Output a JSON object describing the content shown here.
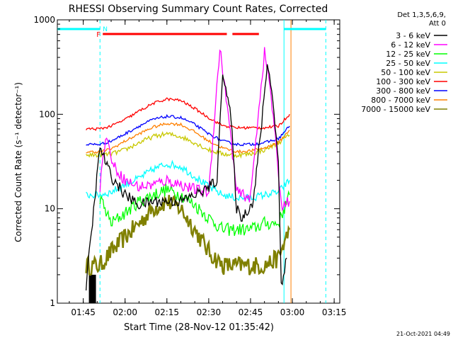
{
  "chart_data": {
    "type": "line",
    "title": "RHESSI Observing Summary Count Rates, Corrected",
    "xlabel": "Start Time (28-Nov-12 01:35:42)",
    "ylabel": "Corrected Count Rate (s⁻¹ detector⁻¹)",
    "yscale": "log",
    "ylim": [
      1,
      1000
    ],
    "xlim": [
      "01:35:42",
      "03:17:00"
    ],
    "x_ticks": [
      "01:45",
      "02:00",
      "02:15",
      "02:30",
      "02:45",
      "03:00",
      "03:15"
    ],
    "y_ticks": [
      "1",
      "10",
      "100",
      "1000"
    ],
    "grid": false,
    "legend_position": "right",
    "legend_header": [
      "Det 1,3,5,6,9,",
      "Att 0"
    ],
    "footer_date": "21-Oct-2021 04:49",
    "flag_labels": {
      "flare": "F",
      "night": "N"
    },
    "attenuator_time": "01:46",
    "series": [
      {
        "name": "3 - 6 keV",
        "color": "#000000",
        "points": [
          [
            "01:46",
            1.5
          ],
          [
            "01:51",
            45
          ],
          [
            "01:55",
            22
          ],
          [
            "02:00",
            14
          ],
          [
            "02:05",
            11
          ],
          [
            "02:10",
            12
          ],
          [
            "02:15",
            12
          ],
          [
            "02:20",
            12
          ],
          [
            "02:25",
            14
          ],
          [
            "02:29",
            16
          ],
          [
            "02:33",
            20
          ],
          [
            "02:35",
            300
          ],
          [
            "02:38",
            90
          ],
          [
            "02:40",
            10
          ],
          [
            "02:42",
            8
          ],
          [
            "02:46",
            12
          ],
          [
            "02:49",
            80
          ],
          [
            "02:51",
            350
          ],
          [
            "02:53",
            150
          ],
          [
            "02:55",
            30
          ],
          [
            "02:56",
            1.6
          ],
          [
            "02:58",
            3
          ]
        ]
      },
      {
        "name": "6 - 12 keV",
        "color": "#ff00ff",
        "points": [
          [
            "01:51",
            17
          ],
          [
            "01:53",
            60
          ],
          [
            "01:56",
            28
          ],
          [
            "02:00",
            20
          ],
          [
            "02:05",
            17
          ],
          [
            "02:10",
            18
          ],
          [
            "02:15",
            20
          ],
          [
            "02:20",
            18
          ],
          [
            "02:25",
            16
          ],
          [
            "02:30",
            15
          ],
          [
            "02:34",
            500
          ],
          [
            "02:37",
            100
          ],
          [
            "02:40",
            15
          ],
          [
            "02:45",
            13
          ],
          [
            "02:48",
            120
          ],
          [
            "02:50",
            450
          ],
          [
            "02:52",
            200
          ],
          [
            "02:55",
            25
          ],
          [
            "02:56",
            11
          ],
          [
            "02:59",
            12
          ]
        ]
      },
      {
        "name": "12 - 25 keV",
        "color": "#00ff00",
        "points": [
          [
            "01:51",
            13
          ],
          [
            "01:55",
            7
          ],
          [
            "02:00",
            9
          ],
          [
            "02:05",
            12
          ],
          [
            "02:10",
            14
          ],
          [
            "02:15",
            16
          ],
          [
            "02:20",
            14
          ],
          [
            "02:25",
            11
          ],
          [
            "02:30",
            8
          ],
          [
            "02:35",
            6
          ],
          [
            "02:40",
            6
          ],
          [
            "02:45",
            6
          ],
          [
            "02:50",
            7
          ],
          [
            "02:55",
            7
          ],
          [
            "02:59",
            14
          ]
        ]
      },
      {
        "name": "25 - 50 keV",
        "color": "#00ffff",
        "points": [
          [
            "01:46",
            14
          ],
          [
            "01:51",
            14
          ],
          [
            "01:55",
            15
          ],
          [
            "02:00",
            18
          ],
          [
            "02:05",
            21
          ],
          [
            "02:10",
            26
          ],
          [
            "02:15",
            30
          ],
          [
            "02:20",
            28
          ],
          [
            "02:25",
            22
          ],
          [
            "02:30",
            17
          ],
          [
            "02:35",
            14
          ],
          [
            "02:40",
            13
          ],
          [
            "02:45",
            13
          ],
          [
            "02:50",
            14
          ],
          [
            "02:55",
            15
          ],
          [
            "02:59",
            20
          ]
        ]
      },
      {
        "name": "50 - 100 keV",
        "color": "#c8c800",
        "points": [
          [
            "01:46",
            37
          ],
          [
            "01:51",
            37
          ],
          [
            "01:55",
            38
          ],
          [
            "02:00",
            42
          ],
          [
            "02:05",
            50
          ],
          [
            "02:10",
            58
          ],
          [
            "02:15",
            62
          ],
          [
            "02:20",
            58
          ],
          [
            "02:25",
            50
          ],
          [
            "02:30",
            42
          ],
          [
            "02:35",
            38
          ],
          [
            "02:40",
            37
          ],
          [
            "02:45",
            38
          ],
          [
            "02:50",
            42
          ],
          [
            "02:55",
            50
          ],
          [
            "02:59",
            60
          ]
        ]
      },
      {
        "name": "100 - 300 keV",
        "color": "#ff0000",
        "points": [
          [
            "01:46",
            70
          ],
          [
            "01:51",
            70
          ],
          [
            "01:55",
            75
          ],
          [
            "02:00",
            88
          ],
          [
            "02:05",
            108
          ],
          [
            "02:10",
            130
          ],
          [
            "02:15",
            145
          ],
          [
            "02:20",
            140
          ],
          [
            "02:25",
            115
          ],
          [
            "02:30",
            92
          ],
          [
            "02:35",
            76
          ],
          [
            "02:40",
            72
          ],
          [
            "02:45",
            72
          ],
          [
            "02:50",
            72
          ],
          [
            "02:55",
            75
          ],
          [
            "02:59",
            100
          ]
        ]
      },
      {
        "name": "300 - 800 keV",
        "color": "#0000ff",
        "points": [
          [
            "01:46",
            48
          ],
          [
            "01:51",
            48
          ],
          [
            "01:55",
            52
          ],
          [
            "02:00",
            62
          ],
          [
            "02:05",
            75
          ],
          [
            "02:10",
            88
          ],
          [
            "02:15",
            95
          ],
          [
            "02:20",
            92
          ],
          [
            "02:25",
            78
          ],
          [
            "02:30",
            62
          ],
          [
            "02:35",
            52
          ],
          [
            "02:40",
            48
          ],
          [
            "02:45",
            48
          ],
          [
            "02:50",
            50
          ],
          [
            "02:55",
            55
          ],
          [
            "02:59",
            75
          ]
        ]
      },
      {
        "name": "800 - 7000 keV",
        "color": "#ff8000",
        "points": [
          [
            "01:46",
            40
          ],
          [
            "01:51",
            40
          ],
          [
            "01:55",
            43
          ],
          [
            "02:00",
            52
          ],
          [
            "02:05",
            62
          ],
          [
            "02:10",
            73
          ],
          [
            "02:15",
            80
          ],
          [
            "02:20",
            78
          ],
          [
            "02:25",
            65
          ],
          [
            "02:30",
            52
          ],
          [
            "02:35",
            44
          ],
          [
            "02:40",
            40
          ],
          [
            "02:45",
            41
          ],
          [
            "02:50",
            44
          ],
          [
            "02:55",
            50
          ],
          [
            "02:59",
            68
          ]
        ]
      },
      {
        "name": "7000 - 15000 keV",
        "color": "#808000",
        "points": [
          [
            "01:46",
            2.5
          ],
          [
            "01:51",
            2.5
          ],
          [
            "01:55",
            3.5
          ],
          [
            "02:00",
            5
          ],
          [
            "02:05",
            7
          ],
          [
            "02:10",
            10
          ],
          [
            "02:15",
            12
          ],
          [
            "02:20",
            10
          ],
          [
            "02:25",
            6
          ],
          [
            "02:30",
            3.5
          ],
          [
            "02:35",
            2.5
          ],
          [
            "02:40",
            2.5
          ],
          [
            "02:45",
            2.5
          ],
          [
            "02:50",
            2.5
          ],
          [
            "02:55",
            3
          ],
          [
            "02:59",
            6
          ]
        ]
      }
    ],
    "night_intervals": [
      [
        "01:35:42",
        "01:51:00"
      ],
      [
        "02:57:00",
        "03:12:00"
      ]
    ],
    "flare_intervals": [
      [
        "01:52:00",
        "02:36:30"
      ],
      [
        "02:38:30",
        "02:48:00"
      ]
    ],
    "markers": [
      {
        "time": "01:51:00",
        "color": "#00ffff",
        "style": "dashed"
      },
      {
        "time": "02:57:00",
        "color": "#00ffff",
        "style": "solid"
      },
      {
        "time": "02:59:30",
        "color": "#ff8000",
        "style": "solid"
      },
      {
        "time": "03:12:00",
        "color": "#00ffff",
        "style": "dashed"
      }
    ]
  }
}
